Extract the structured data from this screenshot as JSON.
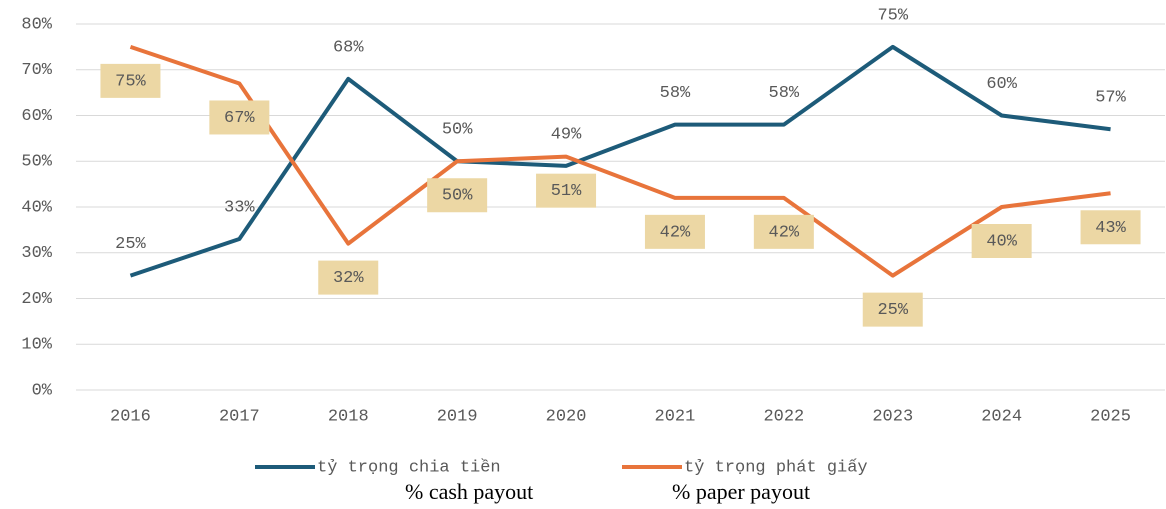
{
  "chart_data": {
    "type": "line",
    "categories": [
      "2016",
      "2017",
      "2018",
      "2019",
      "2020",
      "2021",
      "2022",
      "2023",
      "2024",
      "2025"
    ],
    "series": [
      {
        "name": "tỷ trọng chia tiền",
        "color": "#1d5b79",
        "values": [
          25,
          33,
          68,
          50,
          49,
          58,
          58,
          75,
          60,
          57
        ],
        "value_labels": [
          "25%",
          "33%",
          "68%",
          "50%",
          "49%",
          "58%",
          "58%",
          "75%",
          "60%",
          "57%"
        ]
      },
      {
        "name": "tỷ trọng phát giấy",
        "color": "#e8743b",
        "values": [
          75,
          67,
          32,
          50,
          51,
          42,
          42,
          25,
          40,
          43
        ],
        "value_labels": [
          "75%",
          "67%",
          "32%",
          "50%",
          "51%",
          "42%",
          "42%",
          "25%",
          "40%",
          "43%"
        ]
      }
    ],
    "ylim": [
      0,
      80
    ],
    "yticks": [
      {
        "value": 0,
        "label": "0%"
      },
      {
        "value": 10,
        "label": "10%"
      },
      {
        "value": 20,
        "label": "20%"
      },
      {
        "value": 30,
        "label": "30%"
      },
      {
        "value": 40,
        "label": "40%"
      },
      {
        "value": 50,
        "label": "50%"
      },
      {
        "value": 60,
        "label": "60%"
      },
      {
        "value": 70,
        "label": "70%"
      },
      {
        "value": 80,
        "label": "80%"
      }
    ],
    "grid": true,
    "legend": "bottom",
    "annotations": [
      "% cash payout",
      "% paper payout"
    ]
  }
}
